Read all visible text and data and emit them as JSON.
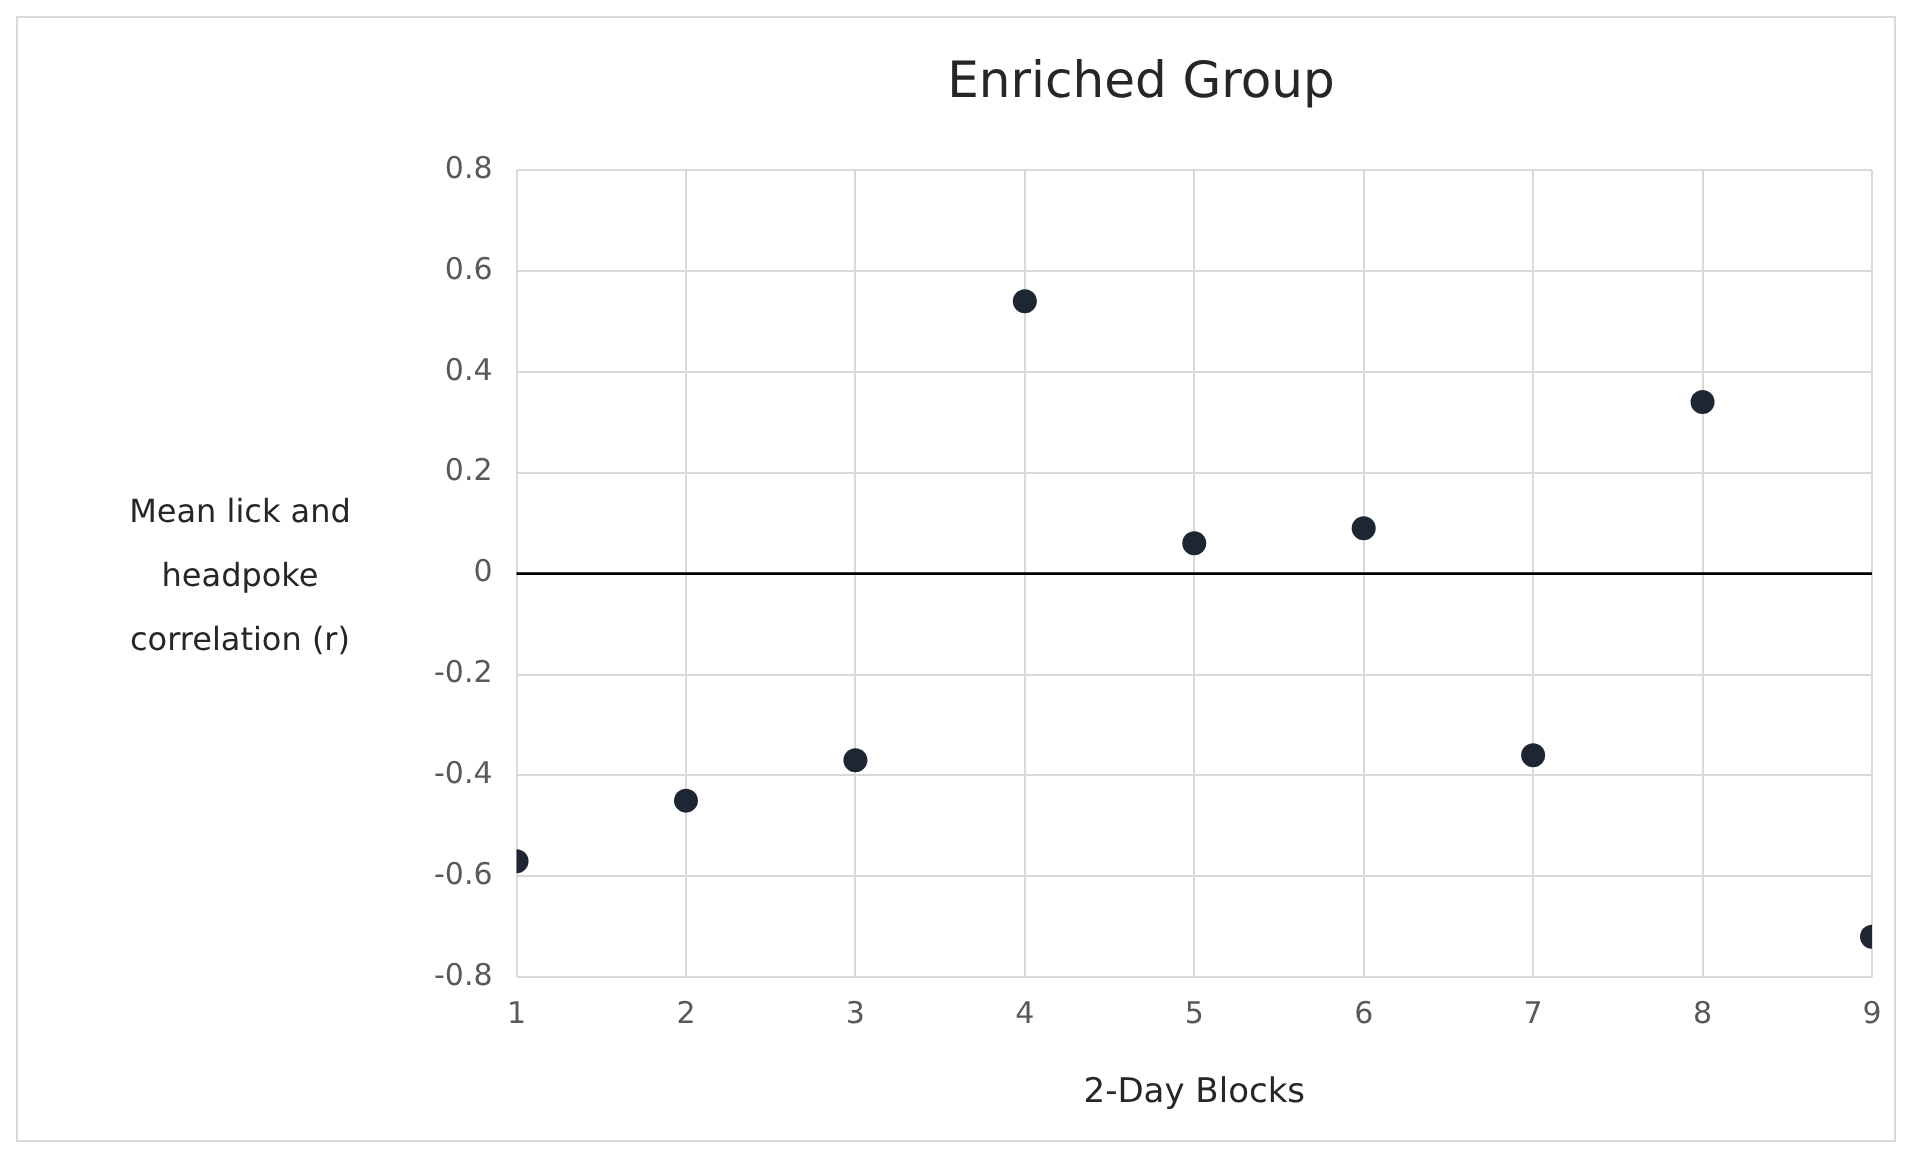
{
  "chart_data": {
    "type": "scatter",
    "title": "Enriched Group",
    "xlabel": "2-Day Blocks",
    "ylabel": "Mean lick and headpoke correlation (r)",
    "x": [
      1,
      2,
      3,
      4,
      5,
      6,
      7,
      8,
      9
    ],
    "series": [
      {
        "color": "#1f2633",
        "values": [
          -0.57,
          -0.45,
          -0.37,
          0.54,
          0.06,
          0.09,
          -0.36,
          0.34,
          -0.72
        ]
      }
    ],
    "xlim": [
      1,
      9
    ],
    "xticks": [
      1,
      2,
      3,
      4,
      5,
      6,
      7,
      8,
      9
    ],
    "ylim": [
      -0.8,
      0.8
    ],
    "yticks": [
      -0.8,
      -0.6,
      -0.4,
      -0.2,
      0,
      0.2,
      0.4,
      0.6,
      0.8
    ],
    "ref_lines": [
      {
        "axis": "y",
        "value": 0,
        "color": "#000000"
      }
    ],
    "grid": true,
    "legend": false,
    "marker": "circle"
  }
}
